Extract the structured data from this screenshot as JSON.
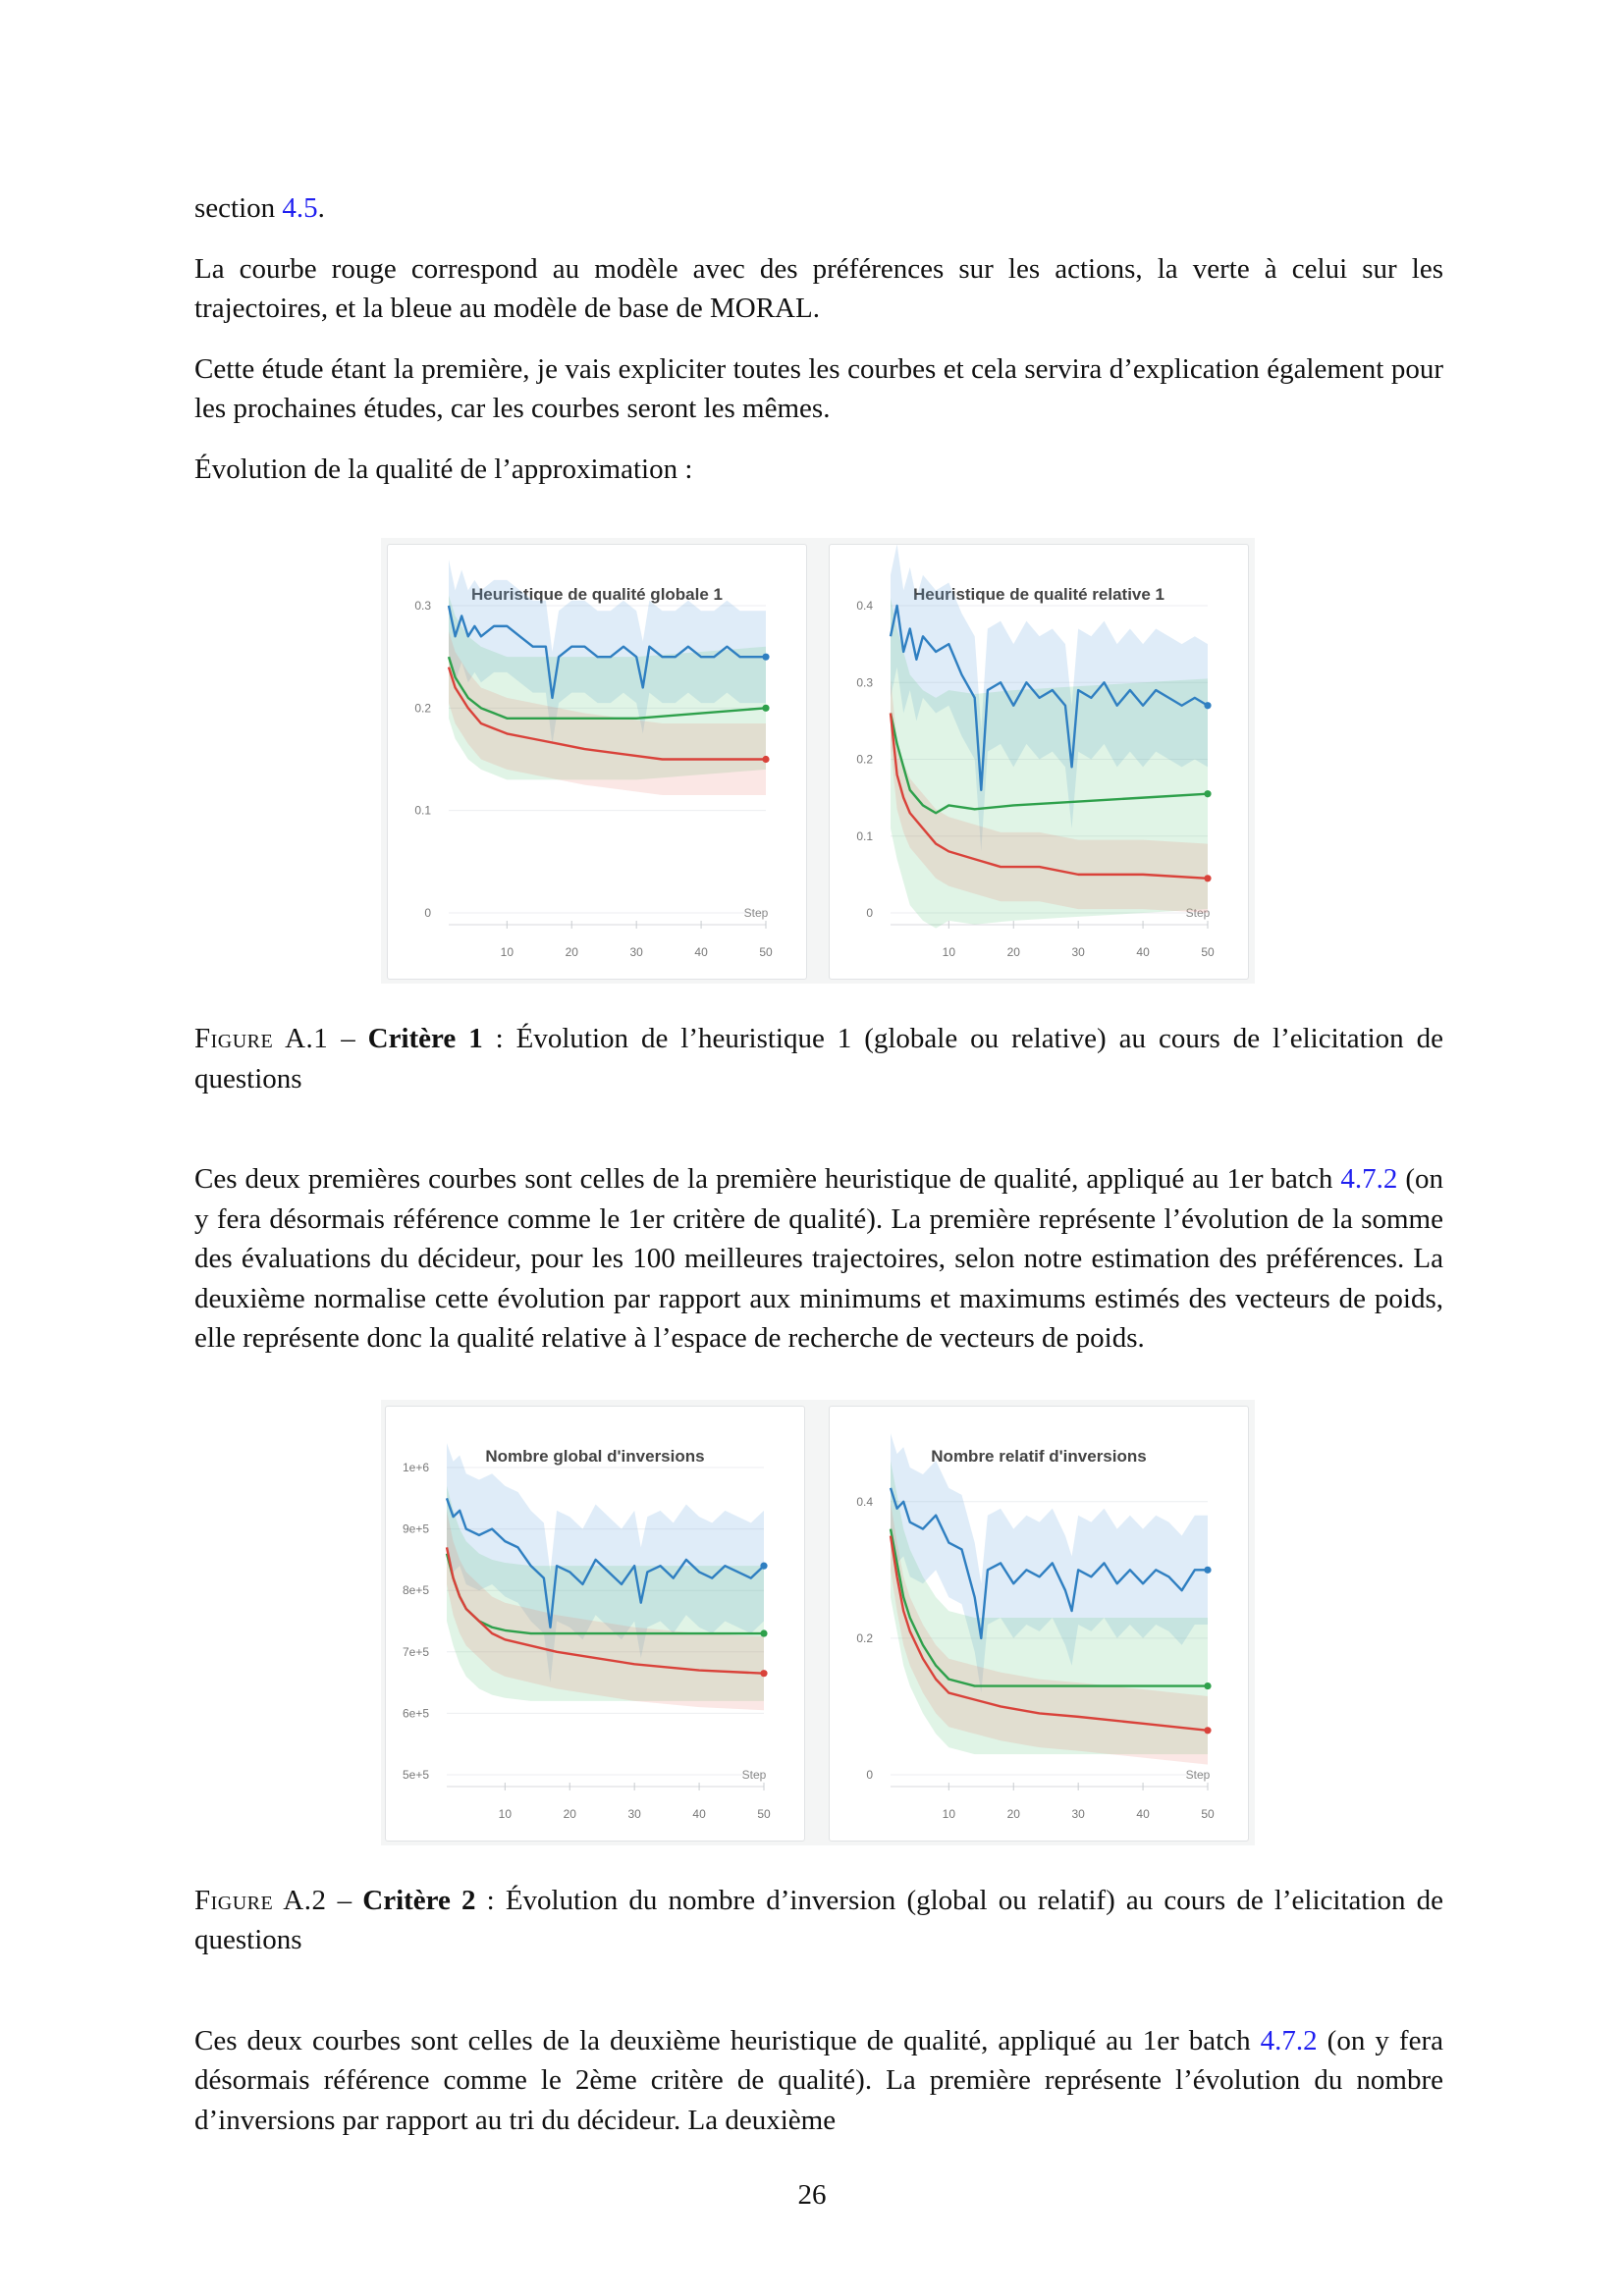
{
  "paragraphs": {
    "p0_text": "section ",
    "p0_link": "4.5",
    "p0_end": ".",
    "p1": "La courbe rouge correspond au modèle avec des préférences sur les actions, la verte à celui sur les trajectoires, et la bleue au modèle de base de MORAL.",
    "p2": "Cette étude étant la première, je vais expliciter toutes les courbes et cela servira d’explication également pour les prochaines études, car les courbes seront les mêmes.",
    "p3": "Évolution de la qualité de l’approximation :",
    "p4_a": "Ces deux premières courbes sont celles de la première heuristique de qualité, appliqué au 1er batch ",
    "p4_link": "4.7.2",
    "p4_b": " (on y fera désormais référence comme le 1er critère de qualité). La première représente l’évolution de la somme des évaluations du décideur, pour les 100 meilleures trajectoires, selon notre estimation des préférences. La deuxième normalise cette évolution par rapport aux minimums et maximums estimés des vecteurs de poids, elle représente donc la qualité relative à l’espace de recherche de vecteurs de poids.",
    "p5_a": "Ces deux courbes sont celles de la deuxième heuristique de qualité, appliqué au 1er batch ",
    "p5_link": "4.7.2",
    "p5_b": " (on y fera désormais référence comme le 2ème critère de qualité). La première représente l’évolution du nombre d’inversions par rapport au tri du décideur. La deuxième"
  },
  "captions": {
    "fig1_label": "Figure A.1",
    "fig1_dash": " – ",
    "fig1_bold": "Critère 1",
    "fig1_rest": " : Évolution de l’heuristique 1 (globale ou relative) au cours de l’elicitation de questions",
    "fig2_label": "Figure A.2",
    "fig2_dash": " – ",
    "fig2_bold": "Critère 2",
    "fig2_rest": " : Évolution du nombre d’inversion (global ou relatif) au cours de l’elicitation de questions"
  },
  "page_number": "26",
  "colors": {
    "blue": "#2f7fc1",
    "green": "#2ea04b",
    "red": "#d9423a"
  },
  "chart_data": [
    {
      "type": "line",
      "title": "Heuristique de qualité globale 1",
      "xlabel": "Step",
      "xticks": [
        "10",
        "20",
        "30",
        "40",
        "50"
      ],
      "yticks": [
        "0",
        "0.1",
        "0.2",
        "0.3"
      ],
      "xlim": [
        1,
        50
      ],
      "ylim": [
        0,
        0.3
      ],
      "series": [
        {
          "color": "blue",
          "points": [
            [
              1,
              0.3
            ],
            [
              2,
              0.27
            ],
            [
              3,
              0.29
            ],
            [
              4,
              0.27
            ],
            [
              5,
              0.28
            ],
            [
              6,
              0.27
            ],
            [
              8,
              0.28
            ],
            [
              10,
              0.28
            ],
            [
              12,
              0.27
            ],
            [
              14,
              0.26
            ],
            [
              16,
              0.26
            ],
            [
              17,
              0.21
            ],
            [
              18,
              0.25
            ],
            [
              20,
              0.26
            ],
            [
              22,
              0.26
            ],
            [
              24,
              0.25
            ],
            [
              26,
              0.25
            ],
            [
              28,
              0.26
            ],
            [
              30,
              0.25
            ],
            [
              31,
              0.22
            ],
            [
              32,
              0.26
            ],
            [
              34,
              0.25
            ],
            [
              36,
              0.25
            ],
            [
              38,
              0.26
            ],
            [
              40,
              0.25
            ],
            [
              42,
              0.25
            ],
            [
              44,
              0.26
            ],
            [
              46,
              0.25
            ],
            [
              48,
              0.25
            ],
            [
              50,
              0.25
            ]
          ],
          "band": 0.045
        },
        {
          "color": "green",
          "points": [
            [
              1,
              0.25
            ],
            [
              2,
              0.23
            ],
            [
              3,
              0.22
            ],
            [
              4,
              0.21
            ],
            [
              6,
              0.2
            ],
            [
              8,
              0.195
            ],
            [
              10,
              0.19
            ],
            [
              14,
              0.19
            ],
            [
              20,
              0.19
            ],
            [
              30,
              0.19
            ],
            [
              40,
              0.195
            ],
            [
              50,
              0.2
            ]
          ],
          "band": 0.06
        },
        {
          "color": "red",
          "points": [
            [
              1,
              0.24
            ],
            [
              2,
              0.22
            ],
            [
              3,
              0.21
            ],
            [
              4,
              0.2
            ],
            [
              6,
              0.185
            ],
            [
              8,
              0.18
            ],
            [
              10,
              0.175
            ],
            [
              14,
              0.17
            ],
            [
              18,
              0.165
            ],
            [
              22,
              0.16
            ],
            [
              28,
              0.155
            ],
            [
              34,
              0.15
            ],
            [
              40,
              0.15
            ],
            [
              46,
              0.15
            ],
            [
              50,
              0.15
            ]
          ],
          "band": 0.035
        }
      ]
    },
    {
      "type": "line",
      "title": "Heuristique de qualité relative 1",
      "xlabel": "Step",
      "xticks": [
        "10",
        "20",
        "30",
        "40",
        "50"
      ],
      "yticks": [
        "0",
        "0.1",
        "0.2",
        "0.3",
        "0.4"
      ],
      "xlim": [
        1,
        50
      ],
      "ylim": [
        0,
        0.4
      ],
      "series": [
        {
          "color": "blue",
          "points": [
            [
              1,
              0.36
            ],
            [
              2,
              0.4
            ],
            [
              3,
              0.34
            ],
            [
              4,
              0.37
            ],
            [
              5,
              0.33
            ],
            [
              6,
              0.36
            ],
            [
              8,
              0.34
            ],
            [
              10,
              0.35
            ],
            [
              12,
              0.31
            ],
            [
              14,
              0.28
            ],
            [
              15,
              0.16
            ],
            [
              16,
              0.29
            ],
            [
              18,
              0.3
            ],
            [
              20,
              0.27
            ],
            [
              22,
              0.3
            ],
            [
              24,
              0.28
            ],
            [
              26,
              0.29
            ],
            [
              28,
              0.27
            ],
            [
              29,
              0.19
            ],
            [
              30,
              0.29
            ],
            [
              32,
              0.28
            ],
            [
              34,
              0.3
            ],
            [
              36,
              0.27
            ],
            [
              38,
              0.29
            ],
            [
              40,
              0.27
            ],
            [
              42,
              0.29
            ],
            [
              44,
              0.28
            ],
            [
              46,
              0.27
            ],
            [
              48,
              0.28
            ],
            [
              50,
              0.27
            ]
          ],
          "band": 0.08
        },
        {
          "color": "green",
          "points": [
            [
              1,
              0.26
            ],
            [
              2,
              0.22
            ],
            [
              3,
              0.19
            ],
            [
              4,
              0.16
            ],
            [
              6,
              0.14
            ],
            [
              8,
              0.13
            ],
            [
              10,
              0.14
            ],
            [
              14,
              0.135
            ],
            [
              20,
              0.14
            ],
            [
              30,
              0.145
            ],
            [
              40,
              0.15
            ],
            [
              50,
              0.155
            ]
          ],
          "band": 0.15
        },
        {
          "color": "red",
          "points": [
            [
              1,
              0.26
            ],
            [
              2,
              0.18
            ],
            [
              3,
              0.15
            ],
            [
              4,
              0.13
            ],
            [
              6,
              0.11
            ],
            [
              8,
              0.09
            ],
            [
              10,
              0.08
            ],
            [
              14,
              0.07
            ],
            [
              18,
              0.06
            ],
            [
              24,
              0.06
            ],
            [
              30,
              0.05
            ],
            [
              40,
              0.05
            ],
            [
              50,
              0.045
            ]
          ],
          "band": 0.045
        }
      ]
    },
    {
      "type": "line",
      "title": "Nombre global d'inversions",
      "xlabel": "Step",
      "xticks": [
        "10",
        "20",
        "30",
        "40",
        "50"
      ],
      "yticks": [
        "5e+5",
        "6e+5",
        "7e+5",
        "8e+5",
        "9e+5",
        "1e+6"
      ],
      "xlim": [
        1,
        50
      ],
      "ylim": [
        500000,
        1000000
      ],
      "series": [
        {
          "color": "blue",
          "points": [
            [
              1,
              950000
            ],
            [
              2,
              920000
            ],
            [
              3,
              930000
            ],
            [
              4,
              900000
            ],
            [
              6,
              890000
            ],
            [
              8,
              900000
            ],
            [
              10,
              880000
            ],
            [
              12,
              870000
            ],
            [
              14,
              840000
            ],
            [
              16,
              820000
            ],
            [
              17,
              740000
            ],
            [
              18,
              840000
            ],
            [
              20,
              830000
            ],
            [
              22,
              810000
            ],
            [
              24,
              850000
            ],
            [
              26,
              830000
            ],
            [
              28,
              810000
            ],
            [
              30,
              840000
            ],
            [
              31,
              780000
            ],
            [
              32,
              830000
            ],
            [
              34,
              840000
            ],
            [
              36,
              820000
            ],
            [
              38,
              850000
            ],
            [
              40,
              830000
            ],
            [
              42,
              820000
            ],
            [
              44,
              840000
            ],
            [
              46,
              830000
            ],
            [
              48,
              820000
            ],
            [
              50,
              840000
            ]
          ],
          "band": 90000
        },
        {
          "color": "green",
          "points": [
            [
              1,
              860000
            ],
            [
              2,
              820000
            ],
            [
              3,
              790000
            ],
            [
              4,
              770000
            ],
            [
              6,
              750000
            ],
            [
              8,
              740000
            ],
            [
              10,
              735000
            ],
            [
              14,
              730000
            ],
            [
              20,
              730000
            ],
            [
              30,
              730000
            ],
            [
              40,
              730000
            ],
            [
              50,
              730000
            ]
          ],
          "band": 110000
        },
        {
          "color": "red",
          "points": [
            [
              1,
              870000
            ],
            [
              2,
              820000
            ],
            [
              3,
              790000
            ],
            [
              4,
              770000
            ],
            [
              6,
              750000
            ],
            [
              8,
              730000
            ],
            [
              10,
              720000
            ],
            [
              14,
              710000
            ],
            [
              18,
              700000
            ],
            [
              24,
              690000
            ],
            [
              30,
              680000
            ],
            [
              40,
              670000
            ],
            [
              50,
              665000
            ]
          ],
          "band": 60000
        }
      ]
    },
    {
      "type": "line",
      "title": "Nombre relatif d'inversions",
      "xlabel": "Step",
      "xticks": [
        "10",
        "20",
        "30",
        "40",
        "50"
      ],
      "yticks": [
        "0",
        "0.2",
        "0.4"
      ],
      "xlim": [
        1,
        50
      ],
      "ylim": [
        0,
        0.45
      ],
      "series": [
        {
          "color": "blue",
          "points": [
            [
              1,
              0.42
            ],
            [
              2,
              0.39
            ],
            [
              3,
              0.4
            ],
            [
              4,
              0.37
            ],
            [
              6,
              0.36
            ],
            [
              8,
              0.38
            ],
            [
              10,
              0.34
            ],
            [
              12,
              0.33
            ],
            [
              14,
              0.26
            ],
            [
              15,
              0.2
            ],
            [
              16,
              0.3
            ],
            [
              18,
              0.31
            ],
            [
              20,
              0.28
            ],
            [
              22,
              0.3
            ],
            [
              24,
              0.29
            ],
            [
              26,
              0.31
            ],
            [
              28,
              0.27
            ],
            [
              29,
              0.24
            ],
            [
              30,
              0.3
            ],
            [
              32,
              0.29
            ],
            [
              34,
              0.31
            ],
            [
              36,
              0.28
            ],
            [
              38,
              0.3
            ],
            [
              40,
              0.28
            ],
            [
              42,
              0.3
            ],
            [
              44,
              0.29
            ],
            [
              46,
              0.27
            ],
            [
              48,
              0.3
            ],
            [
              50,
              0.3
            ]
          ],
          "band": 0.08
        },
        {
          "color": "green",
          "points": [
            [
              1,
              0.36
            ],
            [
              2,
              0.31
            ],
            [
              3,
              0.26
            ],
            [
              4,
              0.23
            ],
            [
              6,
              0.19
            ],
            [
              8,
              0.16
            ],
            [
              10,
              0.14
            ],
            [
              14,
              0.13
            ],
            [
              20,
              0.13
            ],
            [
              30,
              0.13
            ],
            [
              40,
              0.13
            ],
            [
              50,
              0.13
            ]
          ],
          "band": 0.1
        },
        {
          "color": "red",
          "points": [
            [
              1,
              0.35
            ],
            [
              2,
              0.29
            ],
            [
              3,
              0.24
            ],
            [
              4,
              0.21
            ],
            [
              6,
              0.17
            ],
            [
              8,
              0.14
            ],
            [
              10,
              0.12
            ],
            [
              14,
              0.11
            ],
            [
              18,
              0.1
            ],
            [
              24,
              0.09
            ],
            [
              30,
              0.085
            ],
            [
              40,
              0.075
            ],
            [
              50,
              0.065
            ]
          ],
          "band": 0.05
        }
      ]
    }
  ]
}
